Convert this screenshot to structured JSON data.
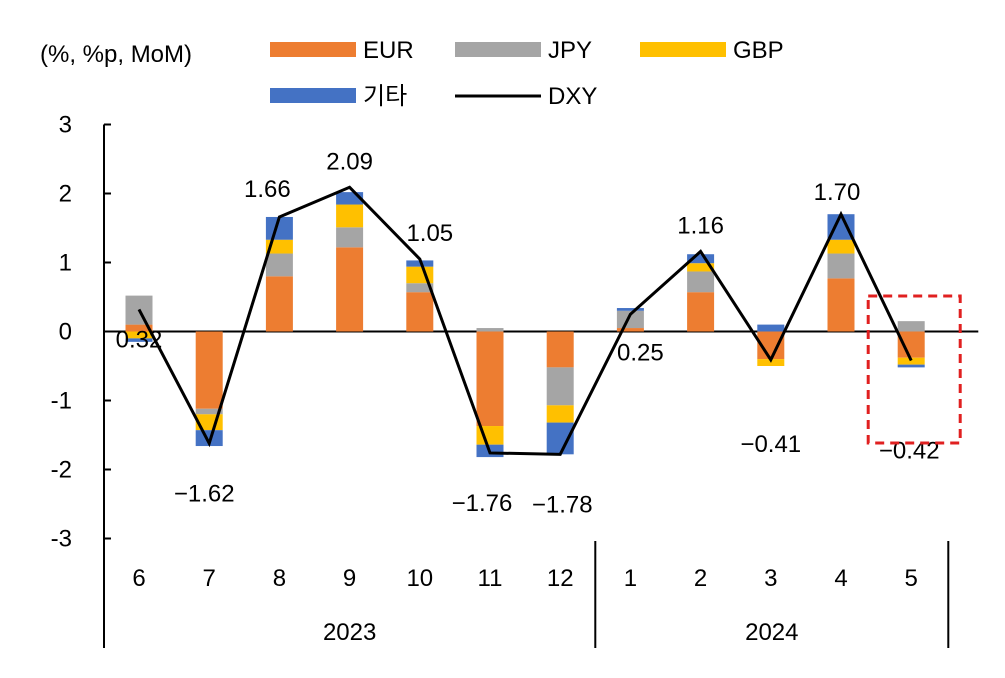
{
  "chart_data": {
    "type": "bar",
    "stacked": true,
    "unit_label": "(%, %p, MoM)",
    "ylim": [
      -3,
      3
    ],
    "yticks": [
      3,
      2,
      1,
      0,
      -1,
      -2,
      -3
    ],
    "categories": [
      "6",
      "7",
      "8",
      "9",
      "10",
      "11",
      "12",
      "1",
      "2",
      "3",
      "4",
      "5"
    ],
    "year_groups": [
      {
        "label": "2023",
        "from": 0,
        "to": 6
      },
      {
        "label": "2024",
        "from": 7,
        "to": 11
      }
    ],
    "series": [
      {
        "name": "EUR",
        "type": "bar",
        "color": "#ED7D31",
        "values": [
          0.1,
          -1.12,
          0.8,
          1.22,
          0.57,
          -1.37,
          -0.52,
          0.05,
          0.57,
          -0.4,
          0.77,
          -0.38
        ]
      },
      {
        "name": "JPY",
        "type": "bar",
        "color": "#A5A5A5",
        "values": [
          0.42,
          -0.08,
          0.33,
          0.29,
          0.13,
          0.05,
          -0.55,
          0.25,
          0.3,
          0.0,
          0.36,
          0.15
        ]
      },
      {
        "name": "GBP",
        "type": "bar",
        "color": "#FFC000",
        "values": [
          -0.1,
          -0.23,
          0.2,
          0.33,
          0.24,
          -0.27,
          -0.25,
          0.0,
          0.12,
          -0.1,
          0.2,
          -0.1
        ]
      },
      {
        "name": "기타",
        "type": "bar",
        "color": "#4472C4",
        "values": [
          -0.05,
          -0.23,
          0.33,
          0.18,
          0.09,
          -0.18,
          -0.46,
          0.04,
          0.13,
          0.1,
          0.37,
          -0.04
        ]
      },
      {
        "name": "DXY",
        "type": "line",
        "color": "#000000",
        "values": [
          0.32,
          -1.62,
          1.66,
          2.09,
          1.05,
          -1.76,
          -1.78,
          0.25,
          1.16,
          -0.41,
          1.7,
          -0.42
        ]
      }
    ],
    "data_labels": [
      "0.32",
      "-1.62",
      "1.66",
      "2.09",
      "1.05",
      "-1.76",
      "-1.78",
      "0.25",
      "1.16",
      "-0.41",
      "1.70",
      "-0.42"
    ],
    "highlight_category": "5",
    "highlight_color": "#E02020",
    "legend_position": "top"
  }
}
